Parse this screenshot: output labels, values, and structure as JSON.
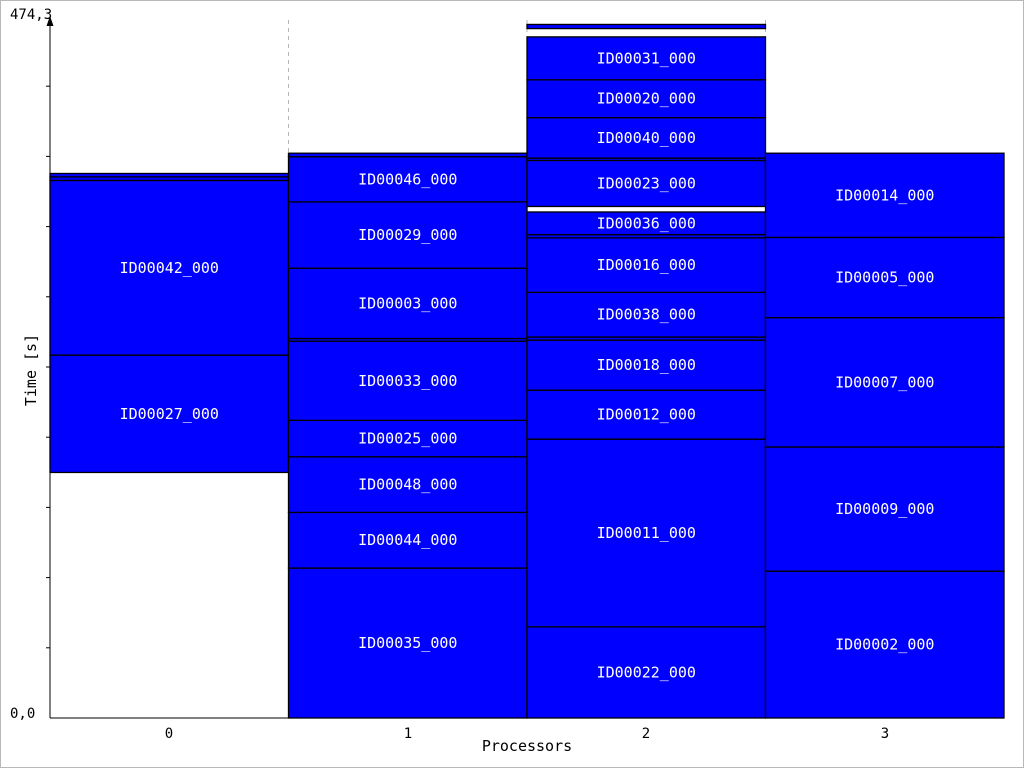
{
  "chart_data": {
    "type": "bar",
    "subtype": "stacked-gantt",
    "xlabel": "Processors",
    "ylabel": "Time [s]",
    "ylim": [
      0,
      474.3
    ],
    "y_tick_labels": [
      "0,0",
      "474,3"
    ],
    "categories": [
      "0",
      "1",
      "2",
      "3"
    ],
    "bar_color": "#0000ff",
    "outline_color": "#000000",
    "label_color": "#ffffff",
    "grid": "vertical dashed lines between processors",
    "processors": [
      {
        "id": "0",
        "tasks": [
          {
            "label": "ID00027_000",
            "start": 165.9,
            "end": 245.2
          },
          {
            "label": "ID00042_000",
            "start": 245.2,
            "end": 363.2
          },
          {
            "label": "",
            "start": 363.2,
            "end": 365.6
          },
          {
            "label": "",
            "start": 365.6,
            "end": 367.9
          }
        ]
      },
      {
        "id": "1",
        "tasks": [
          {
            "label": "ID00035_000",
            "start": 0.0,
            "end": 101.3
          },
          {
            "label": "ID00044_000",
            "start": 101.3,
            "end": 138.9
          },
          {
            "label": "ID00048_000",
            "start": 138.9,
            "end": 176.5
          },
          {
            "label": "ID00025_000",
            "start": 176.5,
            "end": 201.1
          },
          {
            "label": "ID00033_000",
            "start": 201.1,
            "end": 254.6
          },
          {
            "label": "",
            "start": 254.6,
            "end": 256.4
          },
          {
            "label": "ID00003_000",
            "start": 256.4,
            "end": 303.9
          },
          {
            "label": "ID00029_000",
            "start": 303.9,
            "end": 348.7
          },
          {
            "label": "ID00046_000",
            "start": 348.7,
            "end": 379.2
          },
          {
            "label": "",
            "start": 379.2,
            "end": 381.6
          }
        ]
      },
      {
        "id": "2",
        "tasks": [
          {
            "label": "ID00022_000",
            "start": 0.0,
            "end": 61.6
          },
          {
            "label": "ID00011_000",
            "start": 61.6,
            "end": 188.4
          },
          {
            "label": "ID00012_000",
            "start": 188.4,
            "end": 221.5
          },
          {
            "label": "ID00018_000",
            "start": 221.5,
            "end": 255.3
          },
          {
            "label": "",
            "start": 255.3,
            "end": 257.4
          },
          {
            "label": "ID00038_000",
            "start": 257.4,
            "end": 287.6
          },
          {
            "label": "ID00016_000",
            "start": 287.6,
            "end": 324.4
          },
          {
            "label": "",
            "start": 324.4,
            "end": 326.6
          },
          {
            "label": "ID00036_000",
            "start": 326.6,
            "end": 341.9
          },
          {
            "label": "ID00023_000",
            "start": 345.6,
            "end": 376.7
          },
          {
            "label": "",
            "start": 376.7,
            "end": 378.3
          },
          {
            "label": "ID00040_000",
            "start": 378.3,
            "end": 405.6
          },
          {
            "label": "ID00020_000",
            "start": 405.6,
            "end": 431.2
          },
          {
            "label": "ID00031_000",
            "start": 431.2,
            "end": 460.2
          },
          {
            "label": "",
            "start": 465.8,
            "end": 468.6
          }
        ]
      },
      {
        "id": "3",
        "tasks": [
          {
            "label": "ID00002_000",
            "start": 0.0,
            "end": 99.2
          },
          {
            "label": "ID00009_000",
            "start": 99.2,
            "end": 183.1
          },
          {
            "label": "ID00007_000",
            "start": 183.1,
            "end": 270.5
          },
          {
            "label": "ID00005_000",
            "start": 270.5,
            "end": 324.7
          },
          {
            "label": "ID00014_000",
            "start": 324.7,
            "end": 381.6
          }
        ]
      }
    ]
  }
}
